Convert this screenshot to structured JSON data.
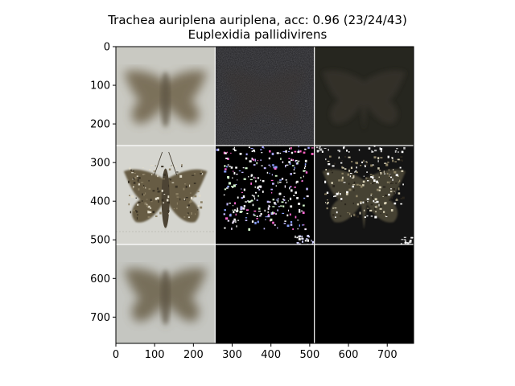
{
  "title": "Trachea auriplena auriplena, acc: 0.96 (23/24/43)",
  "subtitle": "Euplexidia pallidivirens",
  "chart_data": {
    "type": "image-grid",
    "title": "Trachea auriplena auriplena, acc: 0.96 (23/24/43)",
    "subtitle": "Euplexidia pallidivirens",
    "xlim": [
      0,
      768
    ],
    "ylim": [
      768,
      0
    ],
    "x_ticks": [
      0,
      100,
      200,
      300,
      400,
      500,
      600,
      700
    ],
    "y_ticks": [
      0,
      100,
      200,
      300,
      400,
      500,
      600,
      700
    ],
    "grid_rows": 3,
    "grid_cols": 3,
    "cell_size": 256,
    "grid": false,
    "panels": [
      {
        "row": 0,
        "col": 0,
        "content": "blurred moth, light background",
        "bg": "#c9c9c2",
        "subject": "#6e6248"
      },
      {
        "row": 0,
        "col": 1,
        "content": "dark noisy attribution map",
        "bg": "#1d1d20",
        "subject": "#2a2826"
      },
      {
        "row": 0,
        "col": 2,
        "content": "dark faint moth",
        "bg": "#26261f",
        "subject": "#34302a"
      },
      {
        "row": 1,
        "col": 0,
        "content": "moth photograph",
        "bg": "#d5d5cf",
        "subject": "#62573e"
      },
      {
        "row": 1,
        "col": 1,
        "content": "sparse colored speckle mask",
        "bg": "#000000",
        "subject": "#ffffff"
      },
      {
        "row": 1,
        "col": 2,
        "content": "masked moth on dark",
        "bg": "#141414",
        "subject": "#4a4436"
      },
      {
        "row": 2,
        "col": 0,
        "content": "blurred moth, light background",
        "bg": "#c5c6c1",
        "subject": "#6b6048"
      },
      {
        "row": 2,
        "col": 1,
        "content": "black",
        "bg": "#000000",
        "subject": "#000000"
      },
      {
        "row": 2,
        "col": 2,
        "content": "black",
        "bg": "#000000",
        "subject": "#000000"
      }
    ]
  }
}
